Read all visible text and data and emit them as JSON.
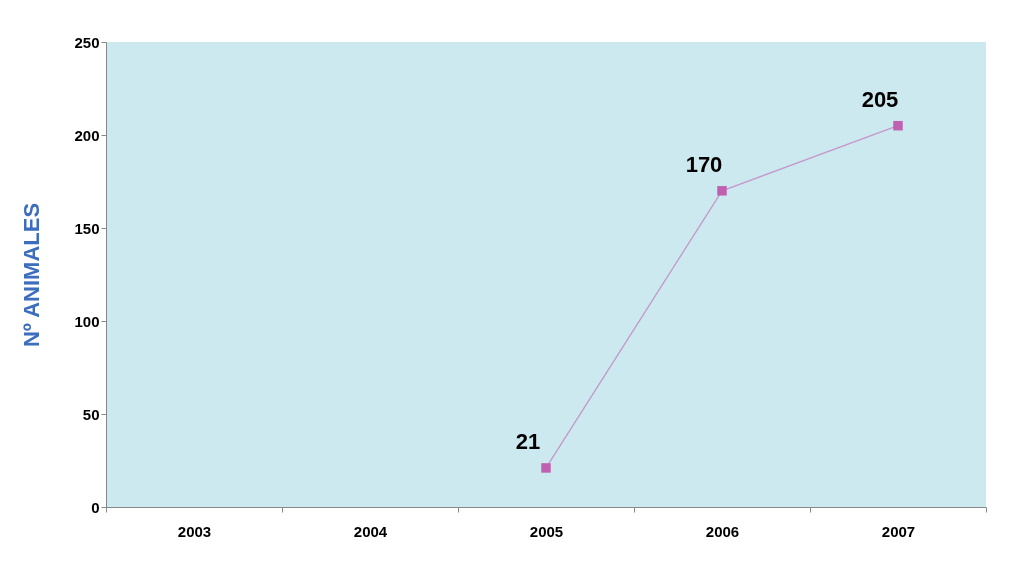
{
  "chart_data": {
    "type": "line",
    "ylabel": "Nº ANIMALES",
    "categories": [
      "2003",
      "2004",
      "2005",
      "2006",
      "2007"
    ],
    "series": [
      {
        "color": "#c060b0",
        "values": [
          null,
          null,
          21,
          170,
          205
        ]
      }
    ],
    "ylim": [
      0,
      250
    ],
    "yticks": [
      0,
      50,
      100,
      150,
      200,
      250
    ],
    "grid": false,
    "legend": false,
    "marker": "square",
    "data_labels": true
  }
}
